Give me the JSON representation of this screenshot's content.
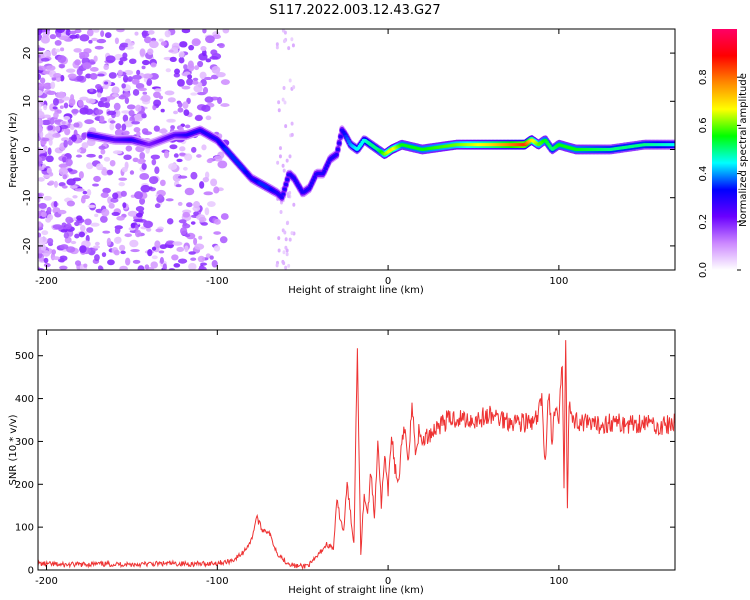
{
  "title": "S117.2022.003.12.43.G27",
  "chart_data": [
    {
      "type": "heatmap",
      "xlabel": "Height of straight line (km)",
      "ylabel": "Frequency (Hz)",
      "xlim": [
        -205,
        168
      ],
      "ylim": [
        -25,
        25
      ],
      "xticks": [
        -200,
        -100,
        0,
        100
      ],
      "yticks": [
        -20,
        -10,
        0,
        10,
        20
      ],
      "colorbar": {
        "label": "Normalized spectral amplitude",
        "range": [
          0,
          1
        ],
        "ticks": [
          "0.0",
          "0.2",
          "0.4",
          "0.6",
          "0.8"
        ],
        "colors": [
          "#ffffff",
          "#cc88ff",
          "#6a00ff",
          "#0000ff",
          "#00ffff",
          "#00ff00",
          "#ffff00",
          "#ff8800",
          "#ff0000",
          "#ff0066"
        ]
      },
      "ridge": {
        "x": [
          -175,
          -160,
          -150,
          -140,
          -125,
          -118,
          -110,
          -100,
          -95,
          -90,
          -85,
          -80,
          -75,
          -70,
          -65,
          -62,
          -58,
          -55,
          -50,
          -46,
          -42,
          -38,
          -34,
          -30,
          -27,
          -25,
          -22,
          -18,
          -14,
          -10,
          -6,
          -2,
          2,
          8,
          20,
          40,
          60,
          80,
          84,
          88,
          92,
          96,
          100,
          110,
          130,
          150,
          168
        ],
        "y": [
          3,
          2,
          2,
          1,
          3,
          3,
          4,
          2,
          0,
          -2,
          -4,
          -6,
          -7,
          -8,
          -9,
          -10,
          -5,
          -6,
          -9,
          -8,
          -5,
          -5,
          -2,
          -1,
          4,
          3,
          1,
          0,
          2,
          1,
          0,
          -1,
          0,
          1,
          0,
          1,
          1,
          1,
          2,
          1,
          2,
          0,
          1,
          0,
          0,
          1,
          1
        ],
        "amplitude": [
          0.3,
          0.25,
          0.3,
          0.2,
          0.25,
          0.3,
          0.3,
          0.3,
          0.35,
          0.35,
          0.35,
          0.3,
          0.35,
          0.35,
          0.3,
          0.3,
          0.3,
          0.3,
          0.3,
          0.3,
          0.3,
          0.3,
          0.3,
          0.3,
          0.3,
          0.35,
          0.4,
          0.45,
          0.45,
          0.5,
          0.5,
          0.6,
          0.7,
          0.55,
          0.55,
          0.6,
          0.7,
          0.85,
          0.7,
          0.6,
          0.55,
          0.5,
          0.55,
          0.55,
          0.5,
          0.5,
          0.45
        ]
      }
    },
    {
      "type": "line",
      "xlabel": "Height of straight line (km)",
      "ylabel": "SNR (10 * v/v)",
      "xlim": [
        -205,
        168
      ],
      "ylim": [
        0,
        560
      ],
      "xticks": [
        -200,
        -100,
        0,
        100
      ],
      "yticks": [
        0,
        100,
        200,
        300,
        400,
        500
      ],
      "color": "#ee3333",
      "series": [
        {
          "x": [
            -205,
            -190,
            -170,
            -150,
            -130,
            -110,
            -95,
            -90,
            -85,
            -80,
            -77,
            -74,
            -70,
            -65,
            -60,
            -55,
            -50,
            -45,
            -40,
            -36,
            -32,
            -30,
            -28,
            -26,
            -24,
            -22,
            -20,
            -18,
            -16,
            -14,
            -12,
            -10,
            -8,
            -6,
            -4,
            -2,
            0,
            2,
            4,
            6,
            8,
            10,
            12,
            14,
            16,
            18,
            20,
            25,
            30,
            35,
            40,
            50,
            60,
            70,
            80,
            85,
            88,
            90,
            92,
            94,
            96,
            98,
            100,
            102,
            103,
            104,
            105,
            106,
            108,
            110,
            120,
            130,
            140,
            150,
            160,
            168
          ],
          "y": [
            15,
            12,
            14,
            13,
            15,
            14,
            18,
            25,
            40,
            70,
            125,
            95,
            90,
            40,
            20,
            10,
            8,
            15,
            40,
            60,
            50,
            160,
            120,
            90,
            200,
            130,
            60,
            525,
            40,
            180,
            130,
            230,
            120,
            310,
            150,
            260,
            180,
            320,
            240,
            200,
            290,
            330,
            260,
            385,
            280,
            320,
            300,
            320,
            340,
            350,
            355,
            350,
            360,
            350,
            345,
            340,
            360,
            400,
            250,
            420,
            300,
            380,
            340,
            480,
            200,
            560,
            155,
            400,
            340,
            350,
            335,
            345,
            340,
            345,
            335,
            342
          ]
        }
      ]
    }
  ]
}
